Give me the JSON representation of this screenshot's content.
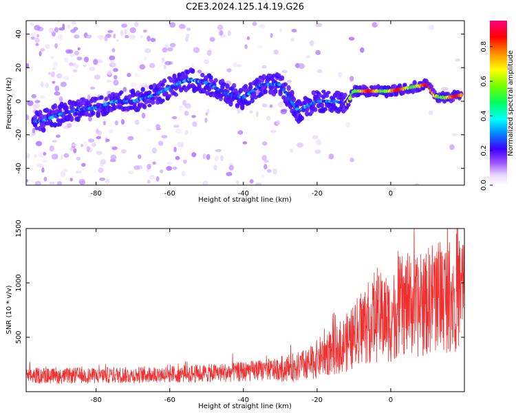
{
  "figure": {
    "title": "C2E3.2024.125.14.19.G26"
  },
  "chart_data": [
    {
      "type": "heatmap",
      "xlabel": "Height of straight line (km)",
      "ylabel": "Frequency (Hz)",
      "xlim": [
        -99,
        20
      ],
      "ylim": [
        -50,
        48
      ],
      "xticks": [
        -80,
        -60,
        -40,
        -20,
        0
      ],
      "yticks": [
        -40,
        -20,
        0,
        20,
        40
      ],
      "grid": false,
      "ridge": {
        "x": [
          -95,
          -90,
          -85,
          -80,
          -75,
          -70,
          -65,
          -60,
          -55,
          -50,
          -45,
          -40,
          -35,
          -30,
          -27,
          -25,
          -22,
          -20,
          -15,
          -12,
          -10,
          -5,
          0,
          5,
          10,
          12,
          15,
          20
        ],
        "y": [
          -12,
          -8,
          -5,
          -4,
          0,
          0,
          3,
          8,
          13,
          11,
          5,
          2,
          10,
          10,
          0,
          -6,
          -2,
          0,
          0,
          -2,
          6,
          6,
          6,
          8,
          10,
          3,
          2,
          4
        ]
      },
      "colorbar": {
        "label": "Normalized spectral amplitude",
        "ticks": [
          0.0,
          0.2,
          0.4,
          0.6,
          0.8
        ],
        "range": [
          0,
          0.95
        ]
      }
    },
    {
      "type": "line",
      "xlabel": "Height of straight line (km)",
      "ylabel": "SNR (10 * v/v)",
      "xlim": [
        -99,
        20
      ],
      "ylim": [
        0,
        1500
      ],
      "xticks": [
        -80,
        -60,
        -40,
        -20,
        0
      ],
      "yticks": [
        500,
        1000,
        1500
      ],
      "series_color": "#f03030",
      "series": [
        {
          "x": [
            -99,
            -95,
            -90,
            -85,
            -80,
            -75,
            -70,
            -65,
            -60,
            -55,
            -50,
            -45,
            -40,
            -35,
            -30,
            -25,
            -22,
            -20,
            -18,
            -15,
            -12,
            -10,
            -8,
            -5,
            -2,
            0,
            2,
            5,
            8,
            10,
            12,
            15,
            18,
            20
          ],
          "y": [
            140,
            150,
            140,
            150,
            145,
            155,
            150,
            160,
            160,
            165,
            170,
            175,
            185,
            195,
            205,
            230,
            260,
            300,
            350,
            380,
            450,
            500,
            600,
            650,
            700,
            650,
            780,
            800,
            760,
            830,
            900,
            880,
            920,
            950
          ]
        }
      ]
    }
  ]
}
